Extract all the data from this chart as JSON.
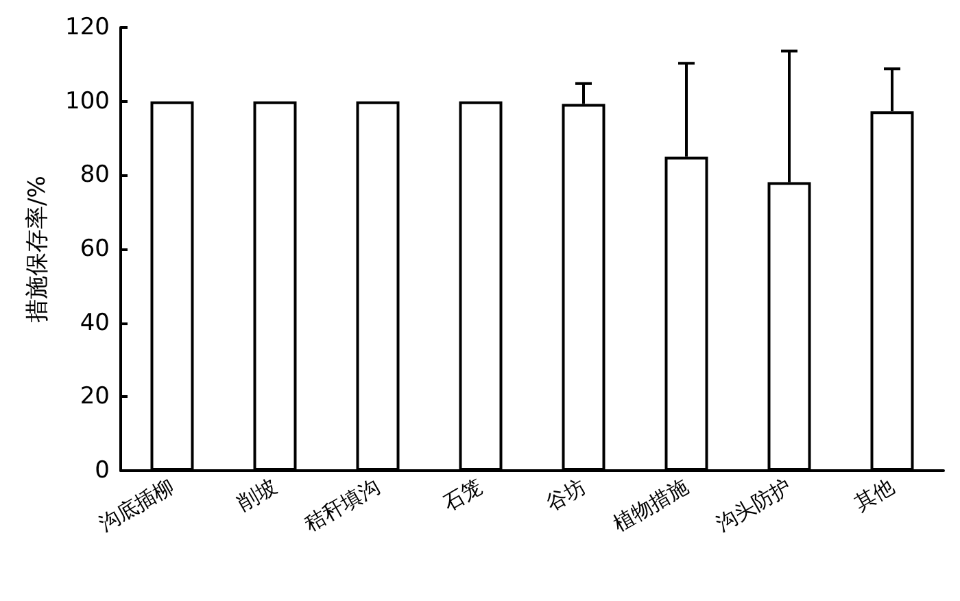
{
  "chart_data": {
    "type": "bar",
    "ylabel": "措施保存率/%",
    "categories": [
      "沟底插柳",
      "削坡",
      "秸秆填沟",
      "石笼",
      "谷坊",
      "植物措施",
      "沟头防护",
      "其他"
    ],
    "values": [
      100,
      100,
      100,
      100,
      99.3,
      85,
      78.1,
      97.3
    ],
    "errors": [
      null,
      null,
      null,
      null,
      5.5,
      25.3,
      35.5,
      11.5
    ],
    "color": "#ffffff",
    "ylim": [
      0,
      120
    ],
    "yticks": [
      0,
      20,
      40,
      60,
      80,
      100,
      120
    ],
    "grid": false
  }
}
